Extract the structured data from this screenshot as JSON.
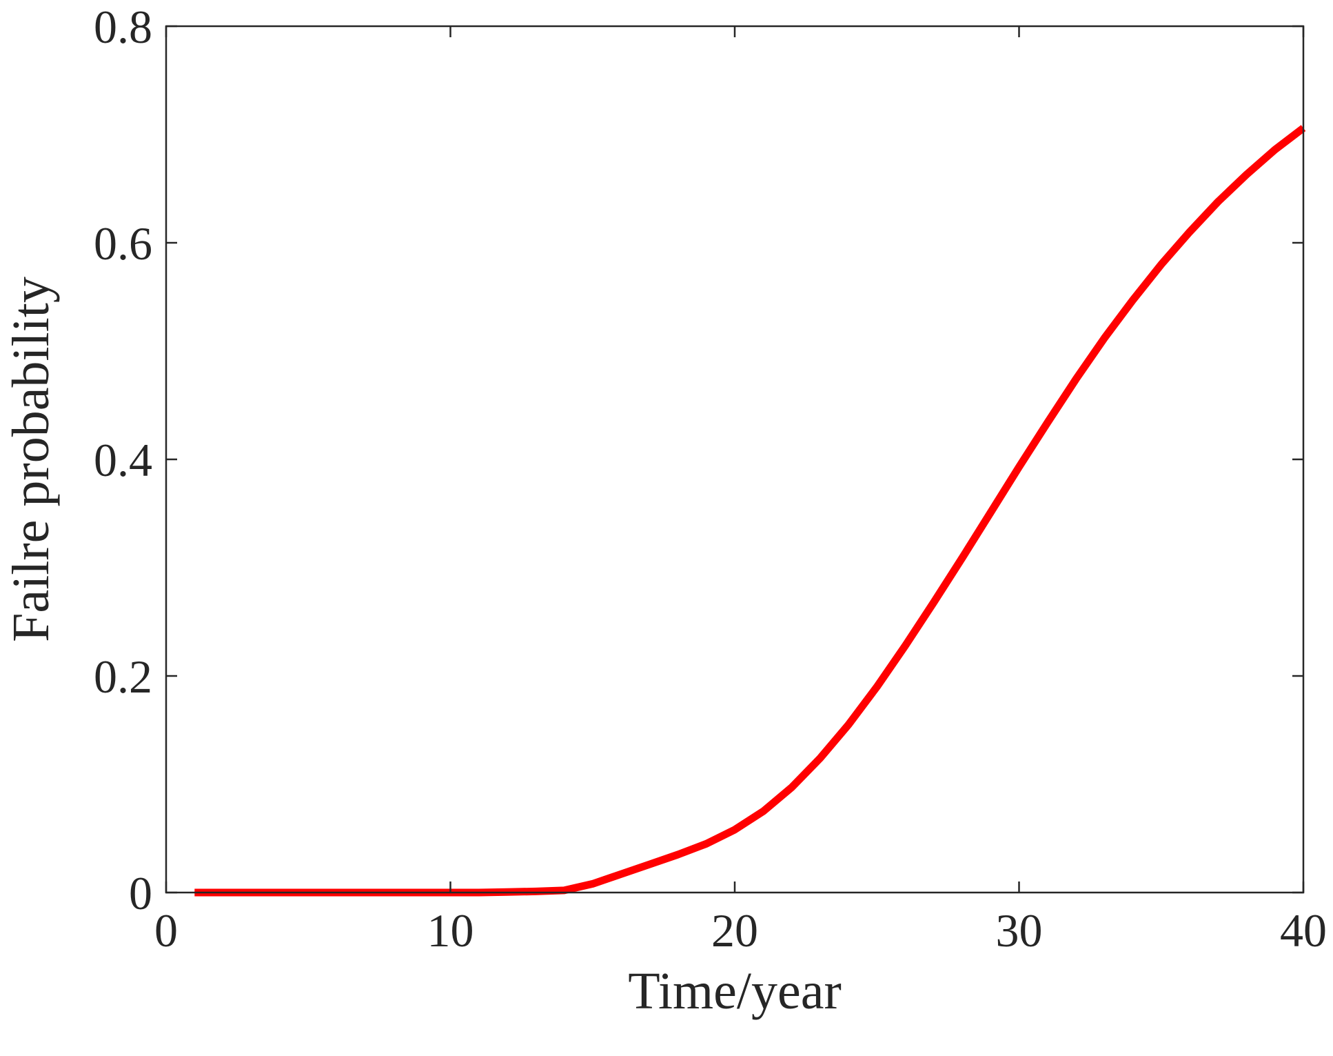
{
  "chart_data": {
    "type": "line",
    "title": "",
    "xlabel": "Time/year",
    "ylabel": "Failre probability",
    "xlim": [
      0,
      40
    ],
    "ylim": [
      0,
      0.8
    ],
    "xticks": [
      0,
      10,
      20,
      30,
      40
    ],
    "yticks": [
      0,
      0.2,
      0.4,
      0.6,
      0.8
    ],
    "xtick_labels": [
      "0",
      "10",
      "20",
      "30",
      "40"
    ],
    "ytick_labels": [
      "0",
      "0.2",
      "0.4",
      "0.6",
      "0.8"
    ],
    "grid": false,
    "series": [
      {
        "color": "#ff0000",
        "x": [
          1,
          2,
          3,
          4,
          5,
          6,
          7,
          8,
          9,
          10,
          11,
          12,
          13,
          14,
          15,
          16,
          17,
          18,
          19,
          20,
          21,
          22,
          23,
          24,
          25,
          26,
          27,
          28,
          29,
          30,
          31,
          32,
          33,
          34,
          35,
          36,
          37,
          38,
          39,
          40
        ],
        "y": [
          0.0,
          0.0,
          0.0,
          0.0,
          0.0,
          0.0,
          0.0,
          0.0,
          0.0,
          0.0,
          0.0,
          0.0005,
          0.001,
          0.002,
          0.008,
          0.017,
          0.026,
          0.035,
          0.045,
          0.058,
          0.075,
          0.097,
          0.124,
          0.155,
          0.19,
          0.228,
          0.268,
          0.309,
          0.351,
          0.393,
          0.434,
          0.474,
          0.512,
          0.547,
          0.58,
          0.61,
          0.638,
          0.663,
          0.686,
          0.706
        ]
      }
    ]
  }
}
